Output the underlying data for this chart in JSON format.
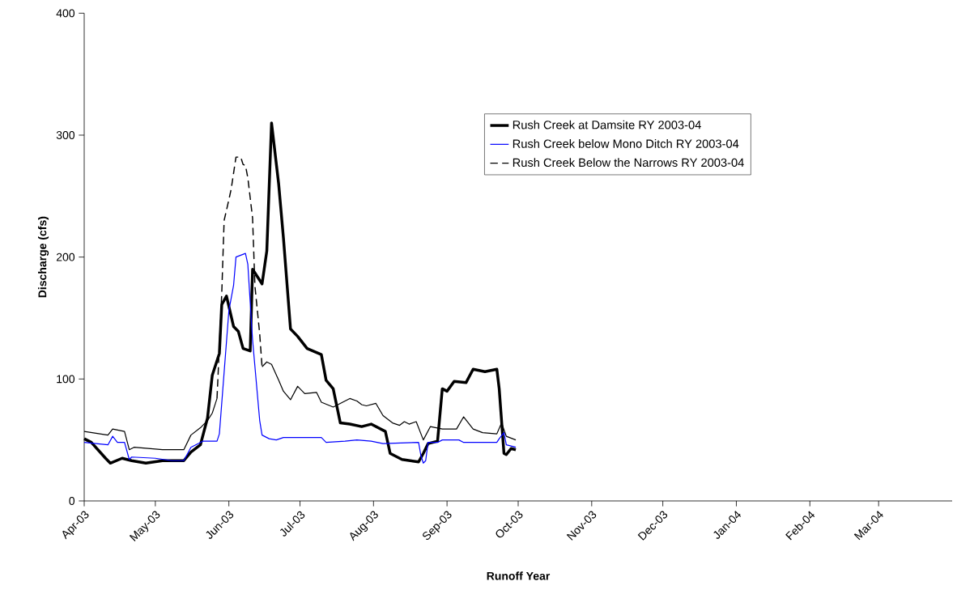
{
  "chart_data": {
    "type": "line",
    "xlabel": "Runoff Year",
    "ylabel": "Discharge (cfs)",
    "xlim": [
      "2003-04-01",
      "2004-04-01"
    ],
    "xticks": [
      {
        "value": "2003-04-01",
        "label": "Apr-03"
      },
      {
        "value": "2003-05-01",
        "label": "May-03"
      },
      {
        "value": "2003-06-01",
        "label": "Jun-03"
      },
      {
        "value": "2003-07-01",
        "label": "Jul-03"
      },
      {
        "value": "2003-08-01",
        "label": "Aug-03"
      },
      {
        "value": "2003-09-01",
        "label": "Sep-03"
      },
      {
        "value": "2003-10-01",
        "label": "Oct-03"
      },
      {
        "value": "2003-11-01",
        "label": "Nov-03"
      },
      {
        "value": "2003-12-01",
        "label": "Dec-03"
      },
      {
        "value": "2004-01-01",
        "label": "Jan-04"
      },
      {
        "value": "2004-02-01",
        "label": "Feb-04"
      },
      {
        "value": "2004-03-01",
        "label": "Mar-04"
      }
    ],
    "ylim": [
      0,
      400
    ],
    "yticks": [
      0,
      100,
      200,
      300,
      400
    ],
    "grid": false,
    "legend": "top right",
    "marker": "none",
    "series": [
      {
        "name": "Rush Creek at Damsite RY 2003-04",
        "color": "#000000",
        "line_style": "solid",
        "x": [
          "2003-04-01",
          "2003-04-04",
          "2003-04-10",
          "2003-04-12",
          "2003-04-17",
          "2003-04-21",
          "2003-04-27",
          "2003-05-04",
          "2003-05-13",
          "2003-05-16",
          "2003-05-20",
          "2003-05-23",
          "2003-05-25",
          "2003-05-28",
          "2003-05-29",
          "2003-05-31",
          "2003-06-03",
          "2003-06-05",
          "2003-06-07",
          "2003-06-10",
          "2003-06-11",
          "2003-06-15",
          "2003-06-17",
          "2003-06-19",
          "2003-06-22",
          "2003-06-24",
          "2003-06-27",
          "2003-06-30",
          "2003-07-04",
          "2003-07-10",
          "2003-07-12",
          "2003-07-15",
          "2003-07-18",
          "2003-07-22",
          "2003-07-27",
          "2003-07-31",
          "2003-08-06",
          "2003-08-08",
          "2003-08-13",
          "2003-08-20",
          "2003-08-22",
          "2003-08-24",
          "2003-08-28",
          "2003-08-30",
          "2003-09-01",
          "2003-09-04",
          "2003-09-09",
          "2003-09-12",
          "2003-09-17",
          "2003-09-22",
          "2003-09-23",
          "2003-09-25",
          "2003-09-26",
          "2003-09-28",
          "2003-09-30"
        ],
        "values": [
          51,
          48,
          35,
          31,
          35,
          33,
          31,
          33,
          33,
          40,
          46,
          68,
          103,
          121,
          161,
          168,
          143,
          139,
          125,
          123,
          190,
          178,
          205,
          310,
          260,
          216,
          141,
          135,
          125,
          120,
          99,
          92,
          64,
          63,
          61,
          63,
          57,
          39,
          34,
          32,
          39,
          47,
          49,
          92,
          90,
          98,
          97,
          108,
          106,
          108,
          92,
          39,
          38,
          43,
          42
        ]
      },
      {
        "name": "Rush Creek below Mono Ditch RY 2003-04",
        "color": "#0000ff",
        "line_style": "solid",
        "x": [
          "2003-04-01",
          "2003-04-11",
          "2003-04-13",
          "2003-04-15",
          "2003-04-18",
          "2003-04-20",
          "2003-04-21",
          "2003-05-01",
          "2003-05-08",
          "2003-05-13",
          "2003-05-16",
          "2003-05-21",
          "2003-05-27",
          "2003-05-28",
          "2003-06-01",
          "2003-06-03",
          "2003-06-04",
          "2003-06-08",
          "2003-06-09",
          "2003-06-11",
          "2003-06-14",
          "2003-06-15",
          "2003-06-18",
          "2003-06-21",
          "2003-06-24",
          "2003-06-30",
          "2003-07-10",
          "2003-07-12",
          "2003-07-20",
          "2003-07-25",
          "2003-07-31",
          "2003-08-05",
          "2003-08-20",
          "2003-08-21",
          "2003-08-22",
          "2003-08-23",
          "2003-08-24",
          "2003-08-28",
          "2003-08-30",
          "2003-09-06",
          "2003-09-08",
          "2003-09-22",
          "2003-09-23",
          "2003-09-25",
          "2003-09-26",
          "2003-09-30"
        ],
        "values": [
          48,
          46,
          53,
          48,
          48,
          34,
          36,
          35,
          33,
          33,
          44,
          49,
          49,
          55,
          156,
          177,
          200,
          203,
          194,
          132,
          66,
          54,
          51,
          50,
          52,
          52,
          52,
          48,
          49,
          50,
          49,
          47,
          48,
          37,
          31,
          33,
          48,
          48,
          50,
          50,
          48,
          48,
          51,
          56,
          46,
          44
        ]
      },
      {
        "name": "Rush Creek Below the Narrows RY 2003-04",
        "color": "#000000",
        "line_style": "dashed",
        "x": [
          "2003-05-27",
          "2003-05-29",
          "2003-05-30",
          "2003-06-01",
          "2003-06-02",
          "2003-06-04",
          "2003-06-06",
          "2003-06-07",
          "2003-06-08",
          "2003-06-09",
          "2003-06-11",
          "2003-06-12",
          "2003-06-14",
          "2003-06-15"
        ],
        "values": [
          84,
          170,
          230,
          247,
          256,
          282,
          282,
          276,
          275,
          265,
          232,
          176,
          137,
          110
        ]
      },
      {
        "color": "#000000",
        "line_style": "solid",
        "x": [
          "2003-04-01",
          "2003-04-11",
          "2003-04-13",
          "2003-04-18",
          "2003-04-20",
          "2003-04-22",
          "2003-05-04",
          "2003-05-13",
          "2003-05-16",
          "2003-05-20",
          "2003-05-23",
          "2003-05-25",
          "2003-05-27",
          "2003-06-05",
          "2003-06-15",
          "2003-06-17",
          "2003-06-19",
          "2003-06-22",
          "2003-06-24",
          "2003-06-27",
          "2003-06-30",
          "2003-07-03",
          "2003-07-08",
          "2003-07-10",
          "2003-07-15",
          "2003-07-22",
          "2003-07-25",
          "2003-07-27",
          "2003-07-29",
          "2003-08-02",
          "2003-08-05",
          "2003-08-09",
          "2003-08-12",
          "2003-08-14",
          "2003-08-16",
          "2003-08-19",
          "2003-08-21",
          "2003-08-22",
          "2003-08-25",
          "2003-08-30",
          "2003-09-05",
          "2003-09-08",
          "2003-09-12",
          "2003-09-16",
          "2003-09-22",
          "2003-09-24",
          "2003-09-26",
          "2003-09-30"
        ],
        "values": [
          57,
          54,
          59,
          57,
          42,
          44,
          42,
          42,
          54,
          60,
          66,
          72,
          84,
          null,
          110,
          114,
          112,
          99,
          90,
          83,
          94,
          88,
          89,
          81,
          77,
          84,
          82,
          79,
          78,
          80,
          70,
          64,
          62,
          65,
          63,
          65,
          55,
          50,
          61,
          59,
          59,
          69,
          59,
          56,
          55,
          64,
          53,
          50
        ]
      }
    ]
  }
}
